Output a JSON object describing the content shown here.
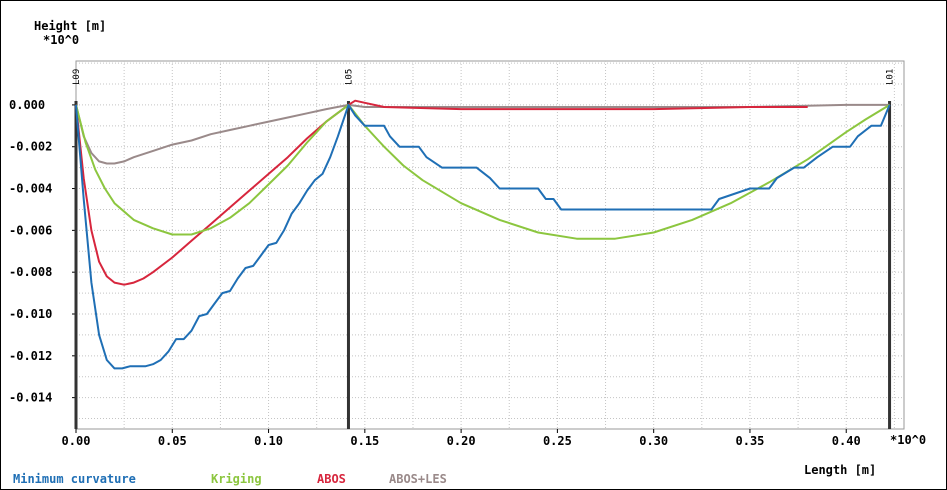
{
  "chart_data": {
    "type": "line",
    "ylabel": "Height [m]",
    "y_multiplier": "*10^0",
    "xlabel": "Length [m]",
    "x_multiplier": "*10^0",
    "xlim": [
      0.0,
      0.43
    ],
    "ylim": [
      -0.0155,
      0.0021
    ],
    "x_ticks": [
      0.0,
      0.05,
      0.1,
      0.15,
      0.2,
      0.25,
      0.3,
      0.35,
      0.4
    ],
    "x_tick_labels": [
      "0.00",
      "0.05",
      "0.10",
      "0.15",
      "0.20",
      "0.25",
      "0.30",
      "0.35",
      "0.40"
    ],
    "y_ticks": [
      0.0,
      -0.002,
      -0.004,
      -0.006,
      -0.008,
      -0.01,
      -0.012,
      -0.014
    ],
    "y_tick_labels": [
      "0.000",
      "-0.002",
      "-0.004",
      "-0.006",
      "-0.008",
      "-0.010",
      "-0.012",
      "-0.014"
    ],
    "grid": true,
    "legend_position": "bottom",
    "markers": [
      {
        "label": "L09",
        "x": 0.0
      },
      {
        "label": "L05",
        "x": 0.1415
      },
      {
        "label": "L01",
        "x": 0.4225
      }
    ],
    "series": [
      {
        "name": "Minimum curvature",
        "color": "#1f6fb5",
        "x": [
          0.0,
          0.004,
          0.008,
          0.012,
          0.016,
          0.02,
          0.024,
          0.028,
          0.032,
          0.036,
          0.04,
          0.044,
          0.048,
          0.052,
          0.056,
          0.06,
          0.064,
          0.068,
          0.072,
          0.076,
          0.08,
          0.084,
          0.088,
          0.092,
          0.096,
          0.1,
          0.104,
          0.108,
          0.112,
          0.116,
          0.12,
          0.124,
          0.128,
          0.132,
          0.136,
          0.1415,
          0.145,
          0.15,
          0.152,
          0.16,
          0.163,
          0.168,
          0.178,
          0.182,
          0.19,
          0.195,
          0.208,
          0.215,
          0.22,
          0.235,
          0.24,
          0.244,
          0.248,
          0.252,
          0.27,
          0.3,
          0.33,
          0.334,
          0.35,
          0.36,
          0.364,
          0.373,
          0.378,
          0.385,
          0.393,
          0.402,
          0.406,
          0.413,
          0.418,
          0.4225
        ],
        "y": [
          0.0,
          -0.0045,
          -0.0085,
          -0.011,
          -0.0122,
          -0.0126,
          -0.0126,
          -0.0125,
          -0.0125,
          -0.0125,
          -0.0124,
          -0.0122,
          -0.0118,
          -0.0112,
          -0.0112,
          -0.0108,
          -0.0101,
          -0.01,
          -0.0095,
          -0.009,
          -0.0089,
          -0.0083,
          -0.0078,
          -0.0077,
          -0.0072,
          -0.0067,
          -0.0066,
          -0.006,
          -0.0052,
          -0.0047,
          -0.0041,
          -0.0036,
          -0.0033,
          -0.0025,
          -0.0015,
          0.0,
          -0.0005,
          -0.001,
          -0.001,
          -0.001,
          -0.0015,
          -0.002,
          -0.002,
          -0.0025,
          -0.003,
          -0.003,
          -0.003,
          -0.0035,
          -0.004,
          -0.004,
          -0.004,
          -0.0045,
          -0.0045,
          -0.005,
          -0.005,
          -0.005,
          -0.005,
          -0.0045,
          -0.004,
          -0.004,
          -0.0035,
          -0.003,
          -0.003,
          -0.0025,
          -0.002,
          -0.002,
          -0.0015,
          -0.001,
          -0.001,
          0.0
        ]
      },
      {
        "name": "Kriging",
        "color": "#8cc63f",
        "x": [
          0.0,
          0.005,
          0.01,
          0.015,
          0.02,
          0.03,
          0.04,
          0.05,
          0.06,
          0.07,
          0.08,
          0.09,
          0.1,
          0.11,
          0.12,
          0.13,
          0.1415,
          0.15,
          0.16,
          0.17,
          0.18,
          0.2,
          0.22,
          0.24,
          0.26,
          0.28,
          0.3,
          0.32,
          0.34,
          0.36,
          0.38,
          0.4,
          0.41,
          0.4225
        ],
        "y": [
          0.0,
          -0.0018,
          -0.0031,
          -0.004,
          -0.0047,
          -0.0055,
          -0.0059,
          -0.0062,
          -0.0062,
          -0.0059,
          -0.0054,
          -0.0047,
          -0.0038,
          -0.0029,
          -0.0018,
          -0.0008,
          0.0,
          -0.001,
          -0.002,
          -0.0029,
          -0.0036,
          -0.0047,
          -0.0055,
          -0.0061,
          -0.0064,
          -0.0064,
          -0.0061,
          -0.0055,
          -0.0047,
          -0.0037,
          -0.0026,
          -0.0013,
          -0.0007,
          0.0
        ]
      },
      {
        "name": "ABOS",
        "color": "#d7263d",
        "x": [
          0.0,
          0.004,
          0.008,
          0.012,
          0.016,
          0.02,
          0.025,
          0.03,
          0.035,
          0.04,
          0.05,
          0.06,
          0.07,
          0.08,
          0.09,
          0.1,
          0.11,
          0.12,
          0.13,
          0.1415,
          0.145,
          0.15,
          0.16,
          0.2,
          0.25,
          0.3,
          0.35,
          0.38
        ],
        "y": [
          0.0,
          -0.0035,
          -0.006,
          -0.0075,
          -0.0082,
          -0.0085,
          -0.0086,
          -0.0085,
          -0.0083,
          -0.008,
          -0.0073,
          -0.0065,
          -0.0057,
          -0.0049,
          -0.0041,
          -0.0033,
          -0.0025,
          -0.0016,
          -0.0008,
          0.0,
          0.0002,
          0.0001,
          -0.0001,
          -0.0002,
          -0.0002,
          -0.0002,
          -0.0001,
          -0.0001
        ]
      },
      {
        "name": "ABOS+LES",
        "color": "#9a8a8a",
        "x": [
          0.0,
          0.004,
          0.008,
          0.012,
          0.016,
          0.02,
          0.025,
          0.03,
          0.04,
          0.05,
          0.06,
          0.07,
          0.08,
          0.09,
          0.1,
          0.11,
          0.12,
          0.13,
          0.1415,
          0.15,
          0.2,
          0.25,
          0.3,
          0.35,
          0.4,
          0.4225
        ],
        "y": [
          0.0,
          -0.0015,
          -0.0023,
          -0.0027,
          -0.0028,
          -0.0028,
          -0.0027,
          -0.0025,
          -0.0022,
          -0.0019,
          -0.0017,
          -0.0014,
          -0.0012,
          -0.001,
          -0.0008,
          -0.0006,
          -0.0004,
          -0.0002,
          0.0,
          -0.0001,
          -0.0001,
          -0.0001,
          -0.0001,
          -0.0001,
          0.0,
          0.0
        ]
      }
    ]
  }
}
